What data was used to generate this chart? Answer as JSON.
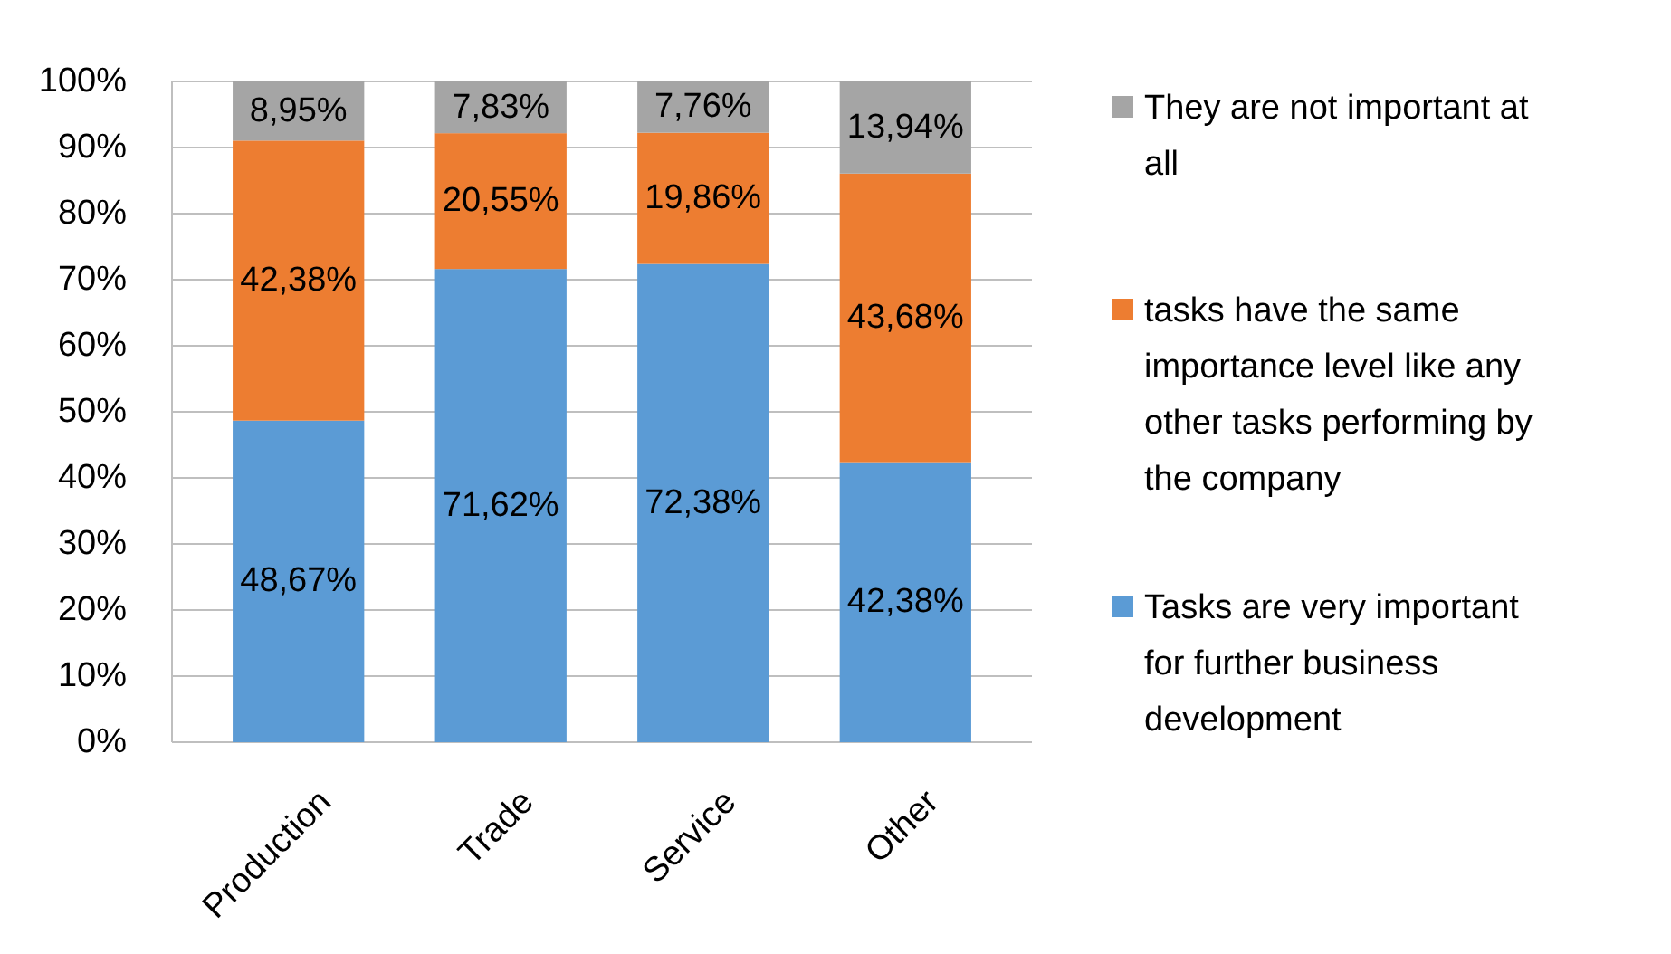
{
  "chart_data": {
    "type": "bar",
    "stacked": true,
    "categories": [
      "Production",
      "Trade",
      "Service",
      "Other"
    ],
    "series": [
      {
        "name": "Tasks are very important for further business development",
        "color": "#5b9bd5",
        "values": [
          48.67,
          71.62,
          72.38,
          42.38
        ],
        "value_labels": [
          "48,67%",
          "71,62%",
          "72,38%",
          "42,38%"
        ]
      },
      {
        "name": "tasks have the same importance level like any other tasks performing by the company",
        "color": "#ed7d31",
        "values": [
          42.38,
          20.55,
          19.86,
          43.68
        ],
        "value_labels": [
          "42,38%",
          "20,55%",
          "19,86%",
          "43,68%"
        ]
      },
      {
        "name": "They are not important at all",
        "color": "#a5a5a5",
        "values": [
          8.95,
          7.83,
          7.76,
          13.94
        ],
        "value_labels": [
          "8,95%",
          "7,83%",
          "7,76%",
          "13,94%"
        ]
      }
    ],
    "ylim": [
      0,
      100
    ],
    "yticks": [
      {
        "value": 0,
        "label": "0%"
      },
      {
        "value": 10,
        "label": "10%"
      },
      {
        "value": 20,
        "label": "20%"
      },
      {
        "value": 30,
        "label": "30%"
      },
      {
        "value": 40,
        "label": "40%"
      },
      {
        "value": 50,
        "label": "50%"
      },
      {
        "value": 60,
        "label": "60%"
      },
      {
        "value": 70,
        "label": "70%"
      },
      {
        "value": 80,
        "label": "80%"
      },
      {
        "value": 90,
        "label": "90%"
      },
      {
        "value": 100,
        "label": "100%"
      }
    ],
    "grid": "y",
    "legend": "right"
  }
}
